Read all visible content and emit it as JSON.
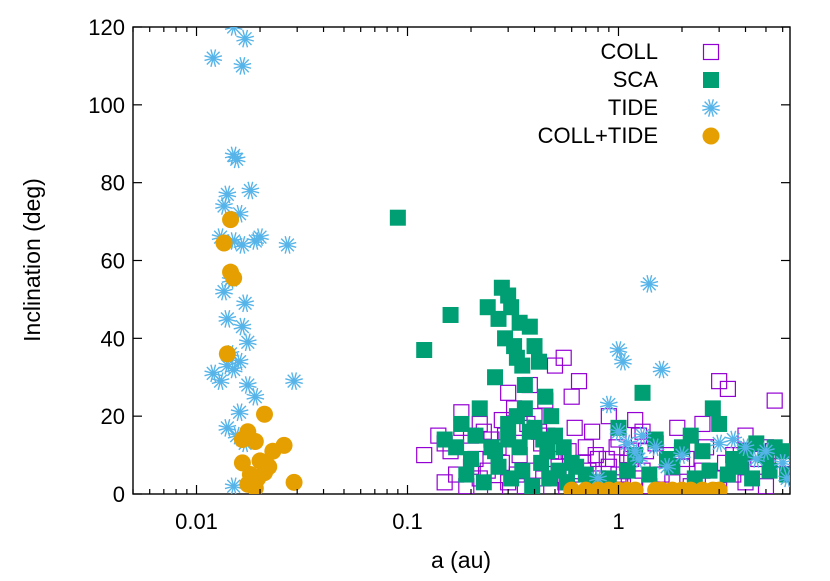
{
  "chart_data": {
    "type": "scatter",
    "xlabel": "a (au)",
    "ylabel": "Inclination (deg)",
    "xscale": "log",
    "xlim": [
      0.005,
      6.5
    ],
    "ylim": [
      0,
      120
    ],
    "xticks": [
      {
        "value": 0.01,
        "label": "0.01"
      },
      {
        "value": 0.1,
        "label": "0.1"
      },
      {
        "value": 1,
        "label": "1"
      }
    ],
    "yticks": [
      {
        "value": 0,
        "label": "0"
      },
      {
        "value": 20,
        "label": "20"
      },
      {
        "value": 40,
        "label": "40"
      },
      {
        "value": 60,
        "label": "60"
      },
      {
        "value": 80,
        "label": "80"
      },
      {
        "value": 100,
        "label": "100"
      },
      {
        "value": 120,
        "label": "120"
      }
    ],
    "legend_position": "top-right",
    "series": [
      {
        "name": "COLL",
        "marker": "open-square",
        "color": "#9400d3",
        "points": [
          [
            0.12,
            10
          ],
          [
            0.15,
            13
          ],
          [
            0.18,
            21
          ],
          [
            0.2,
            15
          ],
          [
            0.22,
            18
          ],
          [
            0.25,
            14
          ],
          [
            0.28,
            19
          ],
          [
            0.3,
            26
          ],
          [
            0.32,
            22
          ],
          [
            0.35,
            17
          ],
          [
            0.38,
            28
          ],
          [
            0.4,
            20
          ],
          [
            0.42,
            16
          ],
          [
            0.45,
            24
          ],
          [
            0.48,
            11
          ],
          [
            0.5,
            33
          ],
          [
            0.55,
            35
          ],
          [
            0.6,
            25
          ],
          [
            0.65,
            29
          ],
          [
            0.7,
            12
          ],
          [
            0.8,
            9
          ],
          [
            0.9,
            20
          ],
          [
            1.0,
            14
          ],
          [
            1.1,
            10
          ],
          [
            1.2,
            19
          ],
          [
            1.3,
            16
          ],
          [
            1.5,
            13
          ],
          [
            2.0,
            11
          ],
          [
            2.5,
            18
          ],
          [
            3.0,
            29
          ],
          [
            3.3,
            27
          ],
          [
            3.5,
            10
          ],
          [
            4.0,
            15
          ],
          [
            5.0,
            12
          ],
          [
            5.5,
            24
          ],
          [
            6.0,
            9
          ],
          [
            0.15,
            3
          ],
          [
            0.17,
            5
          ],
          [
            0.19,
            2
          ],
          [
            0.2,
            7
          ],
          [
            0.22,
            4
          ],
          [
            0.24,
            6
          ],
          [
            0.26,
            1
          ],
          [
            0.28,
            8
          ],
          [
            0.3,
            3
          ],
          [
            0.33,
            5
          ],
          [
            0.36,
            2
          ],
          [
            0.4,
            6
          ],
          [
            0.44,
            4
          ],
          [
            0.48,
            1
          ],
          [
            0.52,
            7
          ],
          [
            0.56,
            3
          ],
          [
            0.6,
            5
          ],
          [
            0.66,
            2
          ],
          [
            0.72,
            6
          ],
          [
            0.8,
            4
          ],
          [
            0.85,
            1
          ],
          [
            0.9,
            7
          ],
          [
            0.95,
            3
          ],
          [
            1.0,
            5
          ],
          [
            1.05,
            2
          ],
          [
            1.1,
            8
          ],
          [
            1.2,
            4
          ],
          [
            1.3,
            6
          ],
          [
            1.4,
            2
          ],
          [
            1.6,
            5
          ],
          [
            1.8,
            3
          ],
          [
            2.0,
            7
          ],
          [
            2.2,
            2
          ],
          [
            2.5,
            6
          ],
          [
            2.8,
            4
          ],
          [
            3.0,
            1
          ],
          [
            3.5,
            5
          ],
          [
            4.0,
            3
          ],
          [
            4.5,
            7
          ],
          [
            5.0,
            2
          ],
          [
            0.16,
            11
          ],
          [
            0.21,
            9
          ],
          [
            0.27,
            12
          ],
          [
            0.34,
            10
          ],
          [
            0.43,
            13
          ],
          [
            0.5,
            9
          ],
          [
            0.58,
            11
          ],
          [
            0.68,
            8
          ],
          [
            0.78,
            10
          ],
          [
            0.88,
            9
          ],
          [
            0.98,
            12
          ],
          [
            1.15,
            9
          ],
          [
            1.35,
            11
          ],
          [
            1.7,
            10
          ],
          [
            2.1,
            9
          ],
          [
            2.6,
            12
          ],
          [
            3.2,
            8
          ],
          [
            3.8,
            10
          ],
          [
            4.6,
            9
          ],
          [
            5.4,
            11
          ],
          [
            0.14,
            15
          ],
          [
            0.18,
            17
          ],
          [
            0.23,
            16
          ],
          [
            0.29,
            15
          ],
          [
            0.37,
            18
          ],
          [
            0.46,
            15
          ],
          [
            0.62,
            17
          ],
          [
            0.75,
            16
          ],
          [
            1.25,
            15
          ],
          [
            1.9,
            17
          ]
        ]
      },
      {
        "name": "SCA",
        "marker": "filled-square",
        "color": "#009e73",
        "points": [
          [
            0.09,
            71
          ],
          [
            0.12,
            37
          ],
          [
            0.15,
            14
          ],
          [
            0.16,
            46
          ],
          [
            0.18,
            18
          ],
          [
            0.2,
            9
          ],
          [
            0.22,
            22
          ],
          [
            0.24,
            48
          ],
          [
            0.25,
            12
          ],
          [
            0.26,
            30
          ],
          [
            0.27,
            45
          ],
          [
            0.28,
            53
          ],
          [
            0.29,
            40
          ],
          [
            0.3,
            51
          ],
          [
            0.31,
            48
          ],
          [
            0.32,
            38
          ],
          [
            0.33,
            35
          ],
          [
            0.34,
            44
          ],
          [
            0.35,
            33
          ],
          [
            0.36,
            28
          ],
          [
            0.38,
            43
          ],
          [
            0.4,
            38
          ],
          [
            0.42,
            34
          ],
          [
            0.45,
            25
          ],
          [
            0.48,
            20
          ],
          [
            0.5,
            15
          ],
          [
            0.55,
            12
          ],
          [
            0.6,
            8
          ],
          [
            0.7,
            5
          ],
          [
            0.8,
            3
          ],
          [
            0.3,
            18
          ],
          [
            0.33,
            20
          ],
          [
            0.36,
            22
          ],
          [
            0.4,
            17
          ],
          [
            0.44,
            14
          ],
          [
            1.0,
            17
          ],
          [
            1.2,
            10
          ],
          [
            1.3,
            26
          ],
          [
            1.5,
            14
          ],
          [
            1.7,
            9
          ],
          [
            2.0,
            12
          ],
          [
            2.2,
            15
          ],
          [
            2.5,
            11
          ],
          [
            2.8,
            22
          ],
          [
            3.0,
            18
          ],
          [
            3.5,
            9
          ],
          [
            4.0,
            11
          ],
          [
            4.5,
            13
          ],
          [
            5.0,
            10
          ],
          [
            5.5,
            12
          ],
          [
            6.0,
            11
          ],
          [
            6.3,
            5
          ],
          [
            0.19,
            5
          ],
          [
            0.23,
            3
          ],
          [
            0.27,
            7
          ],
          [
            0.31,
            4
          ],
          [
            0.35,
            6
          ],
          [
            0.39,
            2
          ],
          [
            0.43,
            8
          ],
          [
            0.47,
            4
          ],
          [
            0.52,
            6
          ],
          [
            0.57,
            3
          ],
          [
            0.63,
            7
          ],
          [
            0.9,
            4
          ],
          [
            1.1,
            6
          ],
          [
            1.4,
            5
          ],
          [
            1.8,
            7
          ],
          [
            2.3,
            4
          ],
          [
            2.7,
            6
          ],
          [
            3.3,
            5
          ],
          [
            3.8,
            7
          ],
          [
            4.3,
            4
          ],
          [
            5.2,
            6
          ],
          [
            0.17,
            12
          ],
          [
            0.21,
            15
          ],
          [
            0.26,
            11
          ],
          [
            0.3,
            14
          ],
          [
            0.34,
            12
          ],
          [
            0.38,
            16
          ],
          [
            0.46,
            11
          ]
        ]
      },
      {
        "name": "TIDE",
        "marker": "asterisk",
        "color": "#56b4e9",
        "points": [
          [
            0.012,
            112
          ],
          [
            0.015,
            120
          ],
          [
            0.017,
            117
          ],
          [
            0.0165,
            110
          ],
          [
            0.015,
            87
          ],
          [
            0.0155,
            86
          ],
          [
            0.014,
            77
          ],
          [
            0.018,
            78
          ],
          [
            0.0135,
            74
          ],
          [
            0.016,
            72
          ],
          [
            0.013,
            66
          ],
          [
            0.015,
            65
          ],
          [
            0.0165,
            64
          ],
          [
            0.019,
            65
          ],
          [
            0.02,
            66
          ],
          [
            0.027,
            64
          ],
          [
            0.0135,
            52
          ],
          [
            0.0145,
            55
          ],
          [
            0.017,
            49
          ],
          [
            0.014,
            45
          ],
          [
            0.0165,
            43
          ],
          [
            0.0175,
            39
          ],
          [
            0.0145,
            36
          ],
          [
            0.016,
            34
          ],
          [
            0.012,
            31
          ],
          [
            0.013,
            29
          ],
          [
            0.015,
            32
          ],
          [
            0.0175,
            28
          ],
          [
            0.029,
            29
          ],
          [
            0.019,
            25
          ],
          [
            0.016,
            21
          ],
          [
            0.014,
            17
          ],
          [
            0.0155,
            15
          ],
          [
            0.017,
            13
          ],
          [
            0.015,
            2
          ],
          [
            0.014,
            33
          ],
          [
            0.9,
            23
          ],
          [
            1.0,
            37
          ],
          [
            1.05,
            34
          ],
          [
            1.4,
            54
          ],
          [
            1.6,
            32
          ],
          [
            1.0,
            16
          ],
          [
            1.1,
            13
          ],
          [
            1.2,
            11
          ],
          [
            1.3,
            15
          ],
          [
            1.5,
            12
          ],
          [
            2.0,
            10
          ],
          [
            3.0,
            13
          ],
          [
            3.5,
            14
          ],
          [
            4.0,
            12
          ],
          [
            4.5,
            9
          ],
          [
            5.0,
            11
          ],
          [
            6.0,
            8
          ],
          [
            6.3,
            4
          ],
          [
            0.8,
            4
          ],
          [
            1.25,
            9
          ],
          [
            1.7,
            7
          ]
        ]
      },
      {
        "name": "COLL+TIDE",
        "marker": "filled-circle",
        "color": "#e69f00",
        "points": [
          [
            0.0145,
            70.5
          ],
          [
            0.0135,
            64.5
          ],
          [
            0.0145,
            57
          ],
          [
            0.015,
            55.5
          ],
          [
            0.014,
            36
          ],
          [
            0.021,
            20.5
          ],
          [
            0.0175,
            16
          ],
          [
            0.0165,
            14
          ],
          [
            0.019,
            13.5
          ],
          [
            0.026,
            12.5
          ],
          [
            0.023,
            11
          ],
          [
            0.0165,
            8
          ],
          [
            0.02,
            8.5
          ],
          [
            0.022,
            7
          ],
          [
            0.018,
            5
          ],
          [
            0.0195,
            4
          ],
          [
            0.021,
            5.5
          ],
          [
            0.0185,
            3.5
          ],
          [
            0.0175,
            2.5
          ],
          [
            0.029,
            3
          ],
          [
            0.019,
            1.5
          ],
          [
            0.6,
            1
          ],
          [
            0.7,
            1
          ],
          [
            0.8,
            1
          ],
          [
            0.9,
            1
          ],
          [
            1.0,
            1
          ],
          [
            1.1,
            1
          ],
          [
            1.2,
            1
          ],
          [
            1.5,
            1
          ],
          [
            1.6,
            1
          ],
          [
            1.8,
            1
          ],
          [
            2.0,
            1
          ],
          [
            2.2,
            1
          ],
          [
            2.5,
            1
          ],
          [
            2.8,
            1
          ],
          [
            3.0,
            1
          ]
        ]
      }
    ]
  }
}
